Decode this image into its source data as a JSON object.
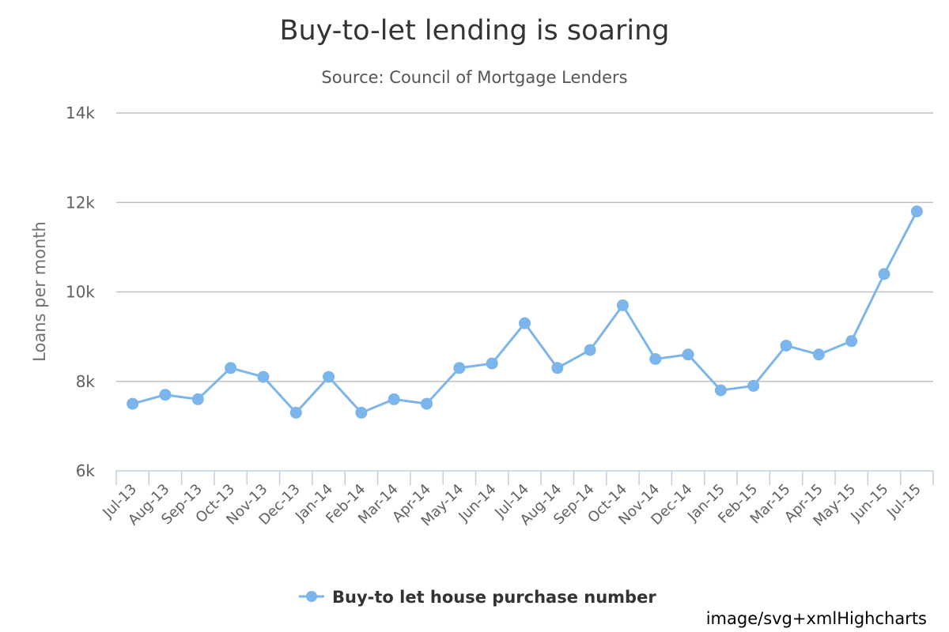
{
  "credits": "image/svg+xmlHighcharts",
  "chart_data": {
    "type": "line",
    "title": "Buy-to-let lending is soaring",
    "subtitle": "Source: Council of Mortgage Lenders",
    "ylabel": "Loans per month",
    "xlabel": "",
    "ylim": [
      6000,
      14000
    ],
    "yticks": [
      {
        "value": 6000,
        "label": "6k"
      },
      {
        "value": 8000,
        "label": "8k"
      },
      {
        "value": 10000,
        "label": "10k"
      },
      {
        "value": 12000,
        "label": "12k"
      },
      {
        "value": 14000,
        "label": "14k"
      }
    ],
    "grid": true,
    "legend_position": "bottom-center",
    "color": "#7cb5ec",
    "categories": [
      "Jul-13",
      "Aug-13",
      "Sep-13",
      "Oct-13",
      "Nov-13",
      "Dec-13",
      "Jan-14",
      "Feb-14",
      "Mar-14",
      "Apr-14",
      "May-14",
      "Jun-14",
      "Jul-14",
      "Aug-14",
      "Sep-14",
      "Oct-14",
      "Nov-14",
      "Dec-14",
      "Jan-15",
      "Feb-15",
      "Mar-15",
      "Apr-15",
      "May-15",
      "Jun-15",
      "Jul-15"
    ],
    "series": [
      {
        "name": "Buy-to let house purchase number",
        "values": [
          7500,
          7700,
          7600,
          8300,
          8100,
          7300,
          8100,
          7300,
          7600,
          7500,
          8300,
          8400,
          9300,
          8300,
          8700,
          9700,
          8500,
          8600,
          7800,
          7900,
          8800,
          8600,
          8900,
          10400,
          11800
        ]
      }
    ]
  }
}
